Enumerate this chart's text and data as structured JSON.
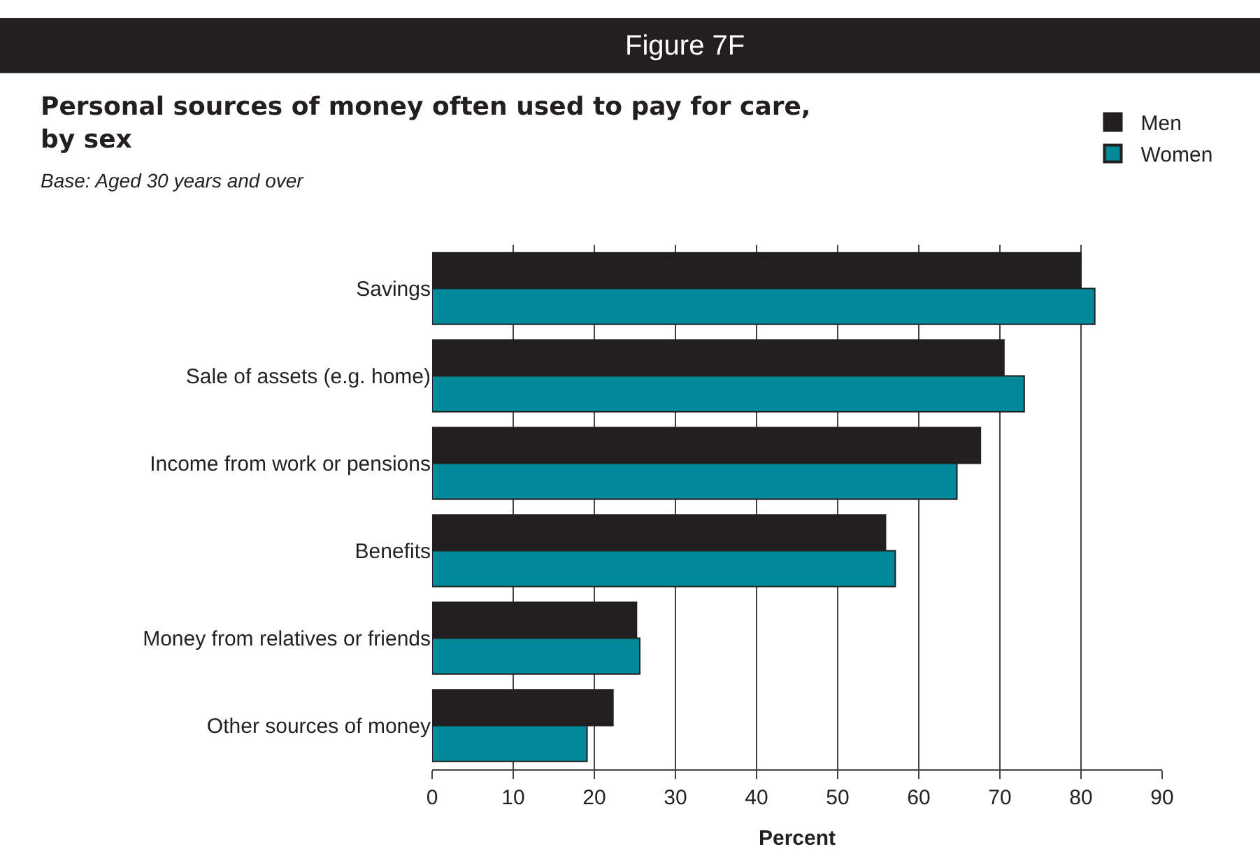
{
  "chart_data": {
    "type": "bar",
    "orientation": "horizontal",
    "title": "Personal sources of money often used to pay for care, by sex",
    "subtitle": "Base: Aged 30 years and over",
    "annotations": [
      "Figure 7F"
    ],
    "xlabel": "Percent",
    "categories": [
      "Savings",
      "Sale of assets (e.g. home)",
      "Income from work or pensions",
      "Benefits",
      "Money from relatives or friends",
      "Other sources of money"
    ],
    "series": [
      {
        "name": "Men",
        "color": "#231f20",
        "values": [
          80,
          70.5,
          67.6,
          55.9,
          25.2,
          22.3
        ]
      },
      {
        "name": "Women",
        "color": "#008a99",
        "values": [
          81.7,
          73,
          64.7,
          57.1,
          25.6,
          19.1
        ]
      }
    ],
    "xlim": [
      0,
      90
    ],
    "xticks": [
      0,
      10,
      20,
      30,
      40,
      50,
      60,
      70,
      80,
      90
    ],
    "grid": "x",
    "legend": "top right"
  }
}
